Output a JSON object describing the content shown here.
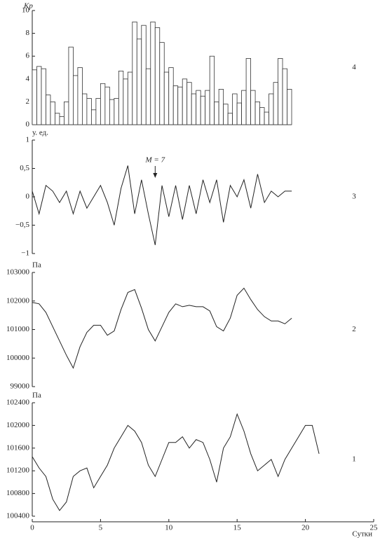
{
  "chart_data": [
    {
      "type": "bar",
      "ylabel": "Kp",
      "panel_label": "4",
      "color": "#ffffff",
      "categories": [
        null,
        null,
        null,
        null,
        null,
        null,
        null,
        null,
        null,
        null,
        null,
        null,
        null,
        null,
        null,
        null,
        null,
        null,
        null,
        null,
        null,
        null,
        null,
        null,
        null,
        null,
        null,
        null,
        null,
        null,
        null,
        null,
        null,
        null,
        null,
        null,
        null,
        null,
        null,
        null,
        null,
        null,
        null,
        null,
        null,
        null,
        null,
        null,
        null,
        null,
        null,
        null,
        null,
        null,
        null,
        null,
        null
      ],
      "values": [
        4.8,
        5.1,
        4.9,
        2.6,
        2.0,
        1.0,
        0.7,
        2.0,
        6.8,
        4.3,
        5.0,
        2.7,
        2.3,
        1.3,
        2.3,
        3.6,
        3.3,
        2.2,
        2.3,
        4.7,
        4.0,
        4.6,
        9.0,
        7.5,
        8.7,
        4.9,
        9.0,
        8.5,
        7.2,
        4.6,
        5.0,
        3.4,
        3.3,
        4.0,
        3.7,
        2.7,
        3.0,
        2.5,
        3.0,
        6.0,
        2.0,
        3.1,
        1.8,
        1.0,
        2.7,
        1.9,
        3.0,
        5.8,
        3.0,
        2.0,
        1.5,
        1.1,
        2.7,
        3.7,
        5.8,
        4.9,
        3.1
      ],
      "ylim": [
        0,
        10
      ],
      "yticks": [
        0,
        2,
        4,
        6,
        8,
        10
      ]
    },
    {
      "type": "line",
      "ylabel": "у. ед.",
      "panel_label": "3",
      "color": "#222222",
      "annotation": "M = 7",
      "annotation_x": 9,
      "x": [
        0,
        0.5,
        1,
        1.5,
        2,
        2.5,
        3,
        3.5,
        4,
        4.5,
        5,
        5.5,
        6,
        6.5,
        7,
        7.5,
        8,
        8.5,
        9,
        9.5,
        10,
        10.5,
        11,
        11.5,
        12,
        12.5,
        13,
        13.5,
        14,
        14.5,
        15,
        15.5,
        16,
        16.5,
        17,
        17.5,
        18,
        18.5,
        19
      ],
      "values": [
        0.1,
        -0.3,
        0.2,
        0.1,
        -0.1,
        0.1,
        -0.3,
        0.1,
        -0.2,
        0.0,
        0.2,
        -0.1,
        -0.5,
        0.15,
        0.55,
        -0.3,
        0.3,
        -0.3,
        -0.85,
        0.2,
        -0.35,
        0.2,
        -0.4,
        0.2,
        -0.3,
        0.3,
        -0.1,
        0.3,
        -0.45,
        0.2,
        0.0,
        0.3,
        -0.2,
        0.4,
        -0.1,
        0.1,
        0.0,
        0.1,
        0.1
      ],
      "xlim": [
        0,
        25
      ],
      "ylim": [
        -1,
        1
      ],
      "yticks": [
        1,
        {
          "value": 0.5,
          "label": "0,5"
        },
        0,
        {
          "value": -0.5,
          "label": "−0,5"
        },
        {
          "value": -1,
          "label": "−1"
        }
      ]
    },
    {
      "type": "line",
      "ylabel": "Па",
      "panel_label": "2",
      "color": "#222222",
      "x": [
        0,
        0.5,
        1,
        1.5,
        2,
        2.5,
        3,
        3.5,
        4,
        4.5,
        5,
        5.5,
        6,
        6.5,
        7,
        7.5,
        8,
        8.5,
        9,
        9.5,
        10,
        10.5,
        11,
        11.5,
        12,
        12.5,
        13,
        13.5,
        14,
        14.5,
        15,
        15.5,
        16,
        16.5,
        17,
        17.5,
        18,
        18.5,
        19
      ],
      "values": [
        101950,
        101900,
        101600,
        101100,
        100600,
        100100,
        99650,
        100400,
        100900,
        101150,
        101150,
        100800,
        100950,
        101700,
        102300,
        102400,
        101750,
        101000,
        100600,
        101100,
        101600,
        101900,
        101800,
        101850,
        101800,
        101800,
        101650,
        101100,
        100950,
        101400,
        102200,
        102450,
        102050,
        101700,
        101450,
        101300,
        101300,
        101200,
        101400
      ],
      "xlim": [
        0,
        25
      ],
      "ylim": [
        99000,
        103000
      ],
      "yticks": [
        99000,
        100000,
        101000,
        102000,
        103000
      ]
    },
    {
      "type": "line",
      "ylabel": "Па",
      "panel_label": "1",
      "color": "#222222",
      "xlabel": "Сутки",
      "x": [
        0,
        0.5,
        1,
        1.5,
        2,
        2.5,
        3,
        3.5,
        4,
        4.5,
        5,
        5.5,
        6,
        6.5,
        7,
        7.5,
        8,
        8.5,
        9,
        9.5,
        10,
        10.5,
        11,
        11.5,
        12,
        12.5,
        13,
        13.5,
        14,
        14.5,
        15,
        15.5,
        16,
        16.5,
        17,
        17.5,
        18,
        18.5,
        19,
        19.5,
        20,
        20.5,
        21
      ],
      "values": [
        101450,
        101250,
        101100,
        100700,
        100500,
        100650,
        101100,
        101200,
        101250,
        100900,
        101100,
        101300,
        101600,
        101800,
        102000,
        101900,
        101700,
        101300,
        101100,
        101400,
        101700,
        101700,
        101800,
        101600,
        101750,
        101700,
        101400,
        101000,
        101600,
        101800,
        102200,
        101900,
        101500,
        101200,
        101300,
        101400,
        101100,
        101400,
        101600,
        101800,
        102000,
        102000,
        101500
      ],
      "xlim": [
        0,
        25
      ],
      "xticks": [
        0,
        5,
        10,
        15,
        20,
        25
      ],
      "ylim": [
        100400,
        102400
      ],
      "yticks": [
        100400,
        100800,
        101200,
        101600,
        102000,
        102400
      ]
    }
  ]
}
